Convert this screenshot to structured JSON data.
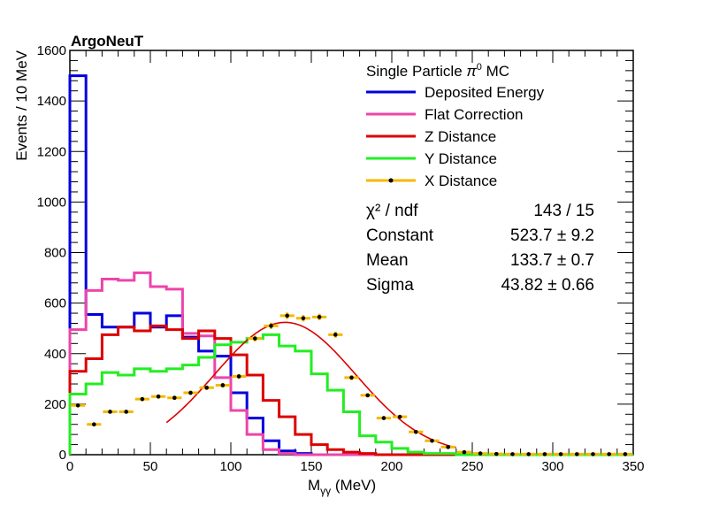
{
  "chart_data": {
    "type": "histogram",
    "title": "ArgoNeuT",
    "xlabel_main": "M",
    "xlabel_sub": "γγ",
    "xlabel_unit": "(MeV)",
    "ylabel": "Events / 10 MeV",
    "xlim": [
      0,
      350
    ],
    "ylim": [
      0,
      1600
    ],
    "x_ticks": [
      0,
      50,
      100,
      150,
      200,
      250,
      300,
      350
    ],
    "y_ticks": [
      0,
      200,
      400,
      600,
      800,
      1000,
      1200,
      1400,
      1600
    ],
    "legend": {
      "header_text": "Single Particle ",
      "header_symbol": "π",
      "header_sup": "0",
      "header_suffix": " MC",
      "entries": [
        {
          "label": "Deposited Energy",
          "color": "#0000dd",
          "style": "line"
        },
        {
          "label": "Flat Correction",
          "color": "#ee44aa",
          "style": "line"
        },
        {
          "label": "Z Distance",
          "color": "#dd0000",
          "style": "line"
        },
        {
          "label": "Y Distance",
          "color": "#22ee22",
          "style": "line"
        },
        {
          "label": "X Distance",
          "color": "#f5b800",
          "style": "marker"
        }
      ]
    },
    "fit_stats": [
      {
        "name": "χ² / ndf",
        "value": "143 / 15"
      },
      {
        "name": "Constant",
        "value": "523.7 ± 9.2"
      },
      {
        "name": "Mean",
        "value": "133.7 ± 0.7"
      },
      {
        "name": "Sigma",
        "value": "43.82 ± 0.66"
      }
    ],
    "bin_edges": [
      0,
      10,
      20,
      30,
      40,
      50,
      60,
      70,
      80,
      90,
      100,
      110,
      120,
      130,
      140,
      150,
      160,
      170,
      180,
      190,
      200,
      210,
      220,
      230,
      240,
      250,
      260,
      270,
      280,
      290,
      300,
      310,
      320,
      330,
      340,
      350
    ],
    "series": [
      {
        "name": "Deposited Energy",
        "color": "#0000dd",
        "values": [
          1500,
          555,
          505,
          505,
          560,
          505,
          550,
          465,
          410,
          390,
          245,
          145,
          55,
          15,
          5,
          0,
          0,
          0,
          0,
          0,
          0,
          0,
          0,
          0,
          0,
          0,
          0,
          0,
          0,
          0,
          0,
          0,
          0,
          0,
          0
        ]
      },
      {
        "name": "Flat Correction",
        "color": "#ee44aa",
        "values": [
          495,
          650,
          695,
          690,
          720,
          665,
          655,
          480,
          470,
          305,
          175,
          80,
          20,
          5,
          0,
          0,
          0,
          0,
          0,
          0,
          0,
          0,
          0,
          0,
          0,
          0,
          0,
          0,
          0,
          0,
          0,
          0,
          0,
          0,
          0
        ]
      },
      {
        "name": "Z Distance",
        "color": "#dd0000",
        "values": [
          330,
          380,
          475,
          505,
          490,
          510,
          495,
          460,
          490,
          460,
          395,
          315,
          215,
          150,
          80,
          40,
          20,
          10,
          5,
          0,
          0,
          0,
          0,
          0,
          0,
          0,
          0,
          0,
          0,
          0,
          0,
          0,
          0,
          0,
          0
        ]
      },
      {
        "name": "Y Distance",
        "color": "#22ee22",
        "values": [
          240,
          280,
          325,
          315,
          340,
          330,
          340,
          355,
          385,
          435,
          445,
          460,
          475,
          430,
          410,
          320,
          255,
          170,
          75,
          50,
          25,
          10,
          5,
          5,
          0,
          0,
          0,
          0,
          0,
          0,
          0,
          0,
          0,
          0,
          0
        ]
      },
      {
        "name": "X Distance",
        "color": "#f5b800",
        "style": "markers",
        "values": [
          195,
          120,
          170,
          170,
          220,
          230,
          225,
          245,
          265,
          275,
          310,
          460,
          510,
          550,
          540,
          545,
          475,
          305,
          235,
          145,
          150,
          90,
          55,
          30,
          10,
          5,
          3,
          2,
          2,
          2,
          2,
          2,
          2,
          2,
          2
        ]
      }
    ],
    "fit": {
      "function": "gaus",
      "constant": 523.7,
      "mean": 133.7,
      "sigma": 43.82,
      "range": [
        60,
        240
      ],
      "color": "#dd0000"
    }
  }
}
